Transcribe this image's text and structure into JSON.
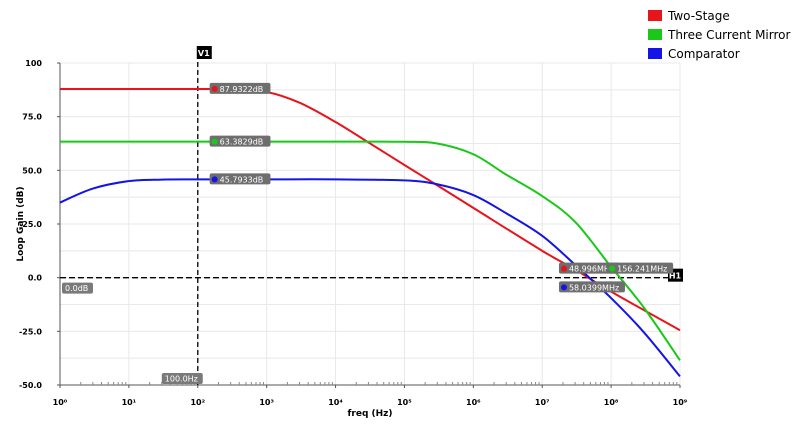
{
  "chart_data": {
    "type": "line",
    "x_scale": "log",
    "xlim": [
      1,
      1000000000
    ],
    "ylim": [
      -50,
      100
    ],
    "xlabel": "freq (Hz)",
    "ylabel": "Loop Gain (dB)",
    "x_tick_labels": [
      "10⁰",
      "10¹",
      "10²",
      "10³",
      "10⁴",
      "10⁵",
      "10⁶",
      "10⁷",
      "10⁸",
      "10⁹"
    ],
    "y_ticks": [
      -50,
      -25,
      0,
      25,
      50,
      75,
      100
    ],
    "y_tick_labels": [
      "-50.0",
      "-25.0",
      "0.0",
      "25.0",
      "50.0",
      "75.0",
      "100"
    ],
    "grid": true,
    "legend_position": "top-right",
    "series": [
      {
        "name": "Two-Stage",
        "color": "#e8141c",
        "x": [
          1,
          100,
          300,
          1000,
          3000,
          10000,
          30000,
          100000,
          300000,
          1000000,
          10000000,
          30000000,
          100000000,
          1000000000
        ],
        "y": [
          87.9,
          87.9,
          87.85,
          86.5,
          81.5,
          72.5,
          63.0,
          52.5,
          43.0,
          32.5,
          12.5,
          3.8,
          -6.5,
          -24.5
        ]
      },
      {
        "name": "Three Current Mirror",
        "color": "#19c819",
        "x": [
          1,
          100,
          1000,
          10000,
          100000,
          300000,
          1000000,
          3000000,
          10000000,
          30000000,
          100000000,
          300000000,
          1000000000
        ],
        "y": [
          63.4,
          63.38,
          63.38,
          63.38,
          63.3,
          62.5,
          57.5,
          48.0,
          38.0,
          26.0,
          5.0,
          -14.0,
          -38.5
        ]
      },
      {
        "name": "Comparator",
        "color": "#1414e6",
        "x": [
          1,
          3,
          10,
          30,
          100,
          1000,
          10000,
          100000,
          300000,
          1000000,
          3000000,
          10000000,
          30000000,
          100000000,
          300000000,
          1000000000
        ],
        "y": [
          35.0,
          41.5,
          45.0,
          45.7,
          45.79,
          45.79,
          45.79,
          45.3,
          43.5,
          38.5,
          30.0,
          19.5,
          6.0,
          -9.5,
          -25.5,
          -46.0
        ]
      }
    ],
    "markers": {
      "vertical": {
        "label": "V1",
        "x": 100,
        "value_label": "100.0Hz"
      },
      "horizontal": {
        "label": "H1",
        "y": 0,
        "value_label": "0.0dB"
      }
    },
    "annotations": [
      {
        "text": "87.9322dB",
        "series": 0,
        "x": 170,
        "y": 87.93
      },
      {
        "text": "63.3829dB",
        "series": 1,
        "x": 170,
        "y": 63.38
      },
      {
        "text": "45.7933dB",
        "series": 2,
        "x": 170,
        "y": 45.79
      },
      {
        "text": "48.996MHz",
        "series": 0,
        "x": 20000000,
        "y": 4.2
      },
      {
        "text": "156.241MHz",
        "series": 1,
        "x": 100000000,
        "y": 4.2
      },
      {
        "text": "58.0399MHz",
        "series": 2,
        "x": 20000000,
        "y": -4.5
      }
    ]
  }
}
